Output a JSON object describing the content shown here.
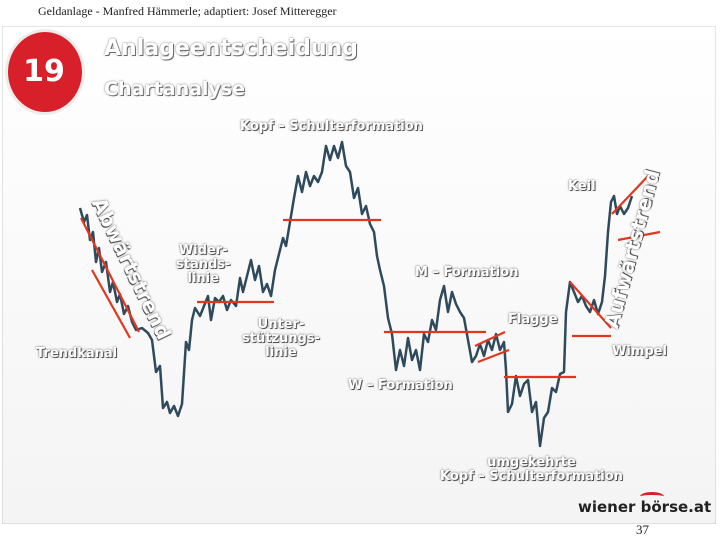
{
  "header": {
    "source_line": "Geldanlage - Manfred Hämmerle; adaptiert: Josef Mitteregger"
  },
  "slide": {
    "number": "19",
    "title": "Anlageentscheidung",
    "subtitle": "Chartanalyse",
    "logo_text": "wiener börse.at"
  },
  "labels": {
    "kopf_schulter": "Kopf – Schulterformation",
    "abwaertstrend": "Abwärtstrend",
    "trendkanal": "Trendkanal",
    "widerstandslinie": "Wider-\nstands-\nlinie",
    "unterstuetzungslinie": "Unter-\nstützungs-\nlinie",
    "m_formation": "M – Formation",
    "w_formation": "W – Formation",
    "flagge": "Flagge",
    "keil": "Keil",
    "aufwaertstrend": "Aufwärtstrend",
    "wimpel": "Wimpel",
    "umgekehrte_sks": "umgekehrte\nKopf – Schulterformation"
  },
  "footer": {
    "page_number": "37"
  },
  "colors": {
    "badge": "#d7202a",
    "line": "#2f4a5c",
    "marker": "#e2371f"
  }
}
